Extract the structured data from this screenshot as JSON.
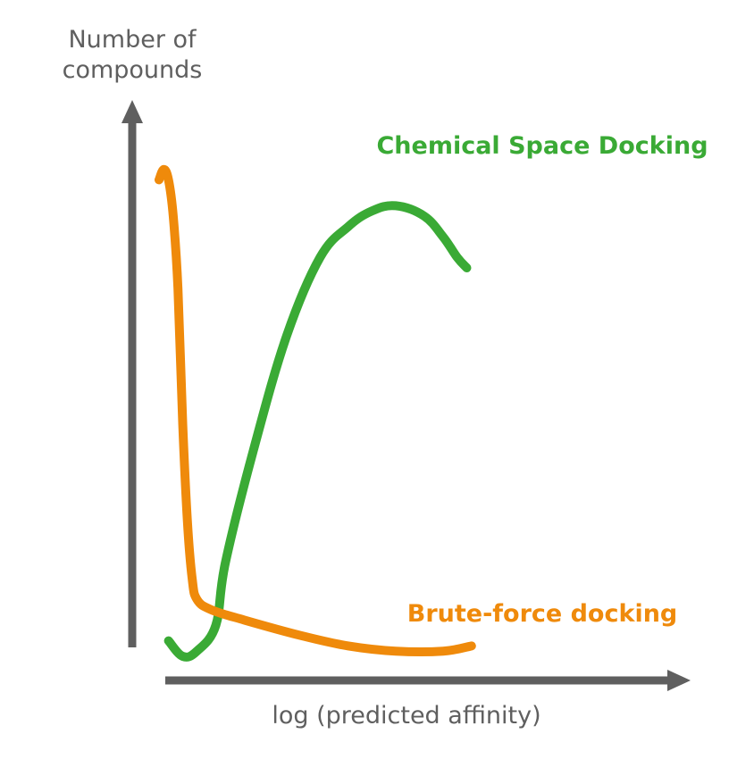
{
  "chart_data": {
    "type": "line",
    "title": "",
    "xlabel": "log (predicted affinity)",
    "ylabel": "Number of compounds",
    "ylabel_lines": [
      "Number of",
      "compounds"
    ],
    "xlim": [
      0,
      100
    ],
    "ylim": [
      0,
      100
    ],
    "x_ticks": [],
    "y_ticks": [],
    "grid": false,
    "axis_color": "#5f5f5f",
    "series": [
      {
        "name": "Chemical Space Docking",
        "color": "#3aaa35",
        "label_position": "top-right",
        "x": [
          2,
          5,
          8,
          12,
          14,
          20,
          27,
          34,
          40,
          45,
          50,
          56,
          60,
          63,
          65
        ],
        "y": [
          3,
          0,
          1,
          6,
          18,
          40,
          62,
          77,
          83,
          86,
          87,
          85,
          81,
          77,
          75
        ]
      },
      {
        "name": "Brute-force docking",
        "color": "#ef8a0b",
        "label_position": "bottom-right",
        "x": [
          0,
          1,
          2,
          3,
          4,
          5,
          6,
          7,
          8,
          11,
          18,
          30,
          40,
          50,
          60,
          66
        ],
        "y": [
          92,
          94,
          92,
          85,
          71,
          45,
          26,
          15,
          11,
          9,
          7,
          4,
          2,
          1,
          1,
          2
        ]
      }
    ]
  }
}
